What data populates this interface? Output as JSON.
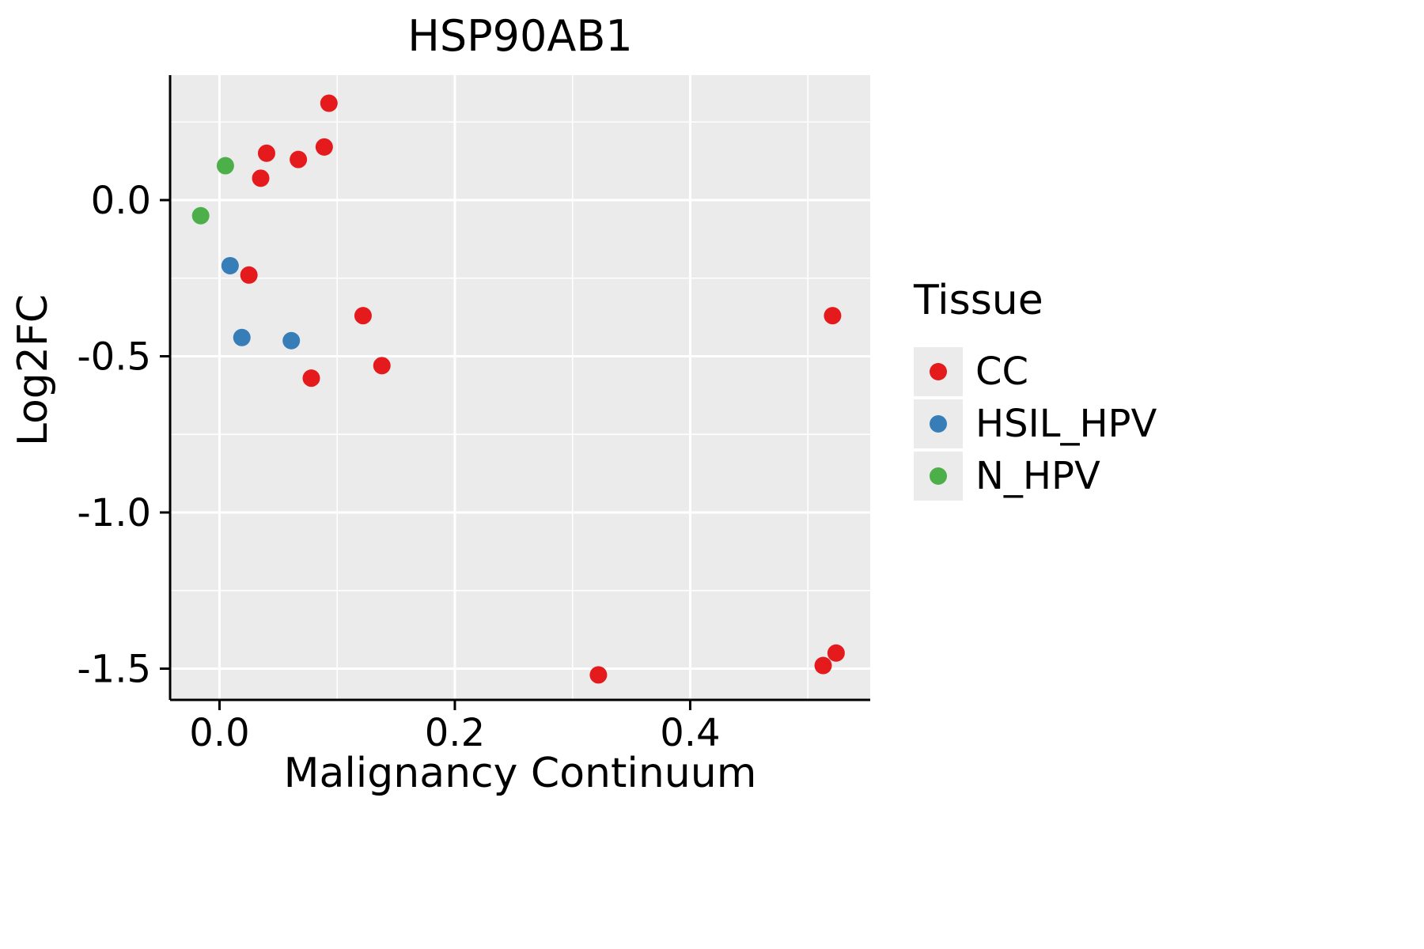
{
  "chart_data": {
    "type": "scatter",
    "title": "HSP90AB1",
    "xlabel": "Malignancy Continuum",
    "ylabel": "Log2FC",
    "xlim": [
      -0.042,
      0.553
    ],
    "ylim": [
      -1.6,
      0.4
    ],
    "x_ticks": [
      0.0,
      0.2,
      0.4
    ],
    "x_tick_labels": [
      "0.0",
      "0.2",
      "0.4"
    ],
    "x_minor_ticks": [
      0.1,
      0.3,
      0.5
    ],
    "y_ticks": [
      0.0,
      -0.5,
      -1.0,
      -1.5
    ],
    "y_tick_labels": [
      "0.0",
      "-0.5",
      "-1.0",
      "-1.5"
    ],
    "y_minor_ticks": [
      0.25,
      -0.25,
      -0.75,
      -1.25
    ],
    "grid": true,
    "panel_background": "#ebebeb",
    "grid_color": "#ffffff",
    "axis_color": "#000000",
    "point_radius": 11,
    "legend_title": "Tissue",
    "legend_position": "right",
    "series": [
      {
        "name": "CC",
        "color": "#e41a1c",
        "points": [
          [
            0.093,
            0.31
          ],
          [
            0.089,
            0.17
          ],
          [
            0.04,
            0.15
          ],
          [
            0.067,
            0.13
          ],
          [
            0.035,
            0.07
          ],
          [
            0.025,
            -0.24
          ],
          [
            0.122,
            -0.37
          ],
          [
            0.521,
            -0.37
          ],
          [
            0.138,
            -0.53
          ],
          [
            0.078,
            -0.57
          ],
          [
            0.322,
            -1.52
          ],
          [
            0.513,
            -1.49
          ],
          [
            0.524,
            -1.45
          ]
        ]
      },
      {
        "name": "HSIL_HPV",
        "color": "#377eb8",
        "points": [
          [
            0.009,
            -0.21
          ],
          [
            0.019,
            -0.44
          ],
          [
            0.061,
            -0.45
          ]
        ]
      },
      {
        "name": "N_HPV",
        "color": "#4daf4a",
        "points": [
          [
            0.005,
            0.11
          ],
          [
            -0.016,
            -0.05
          ]
        ]
      }
    ]
  }
}
